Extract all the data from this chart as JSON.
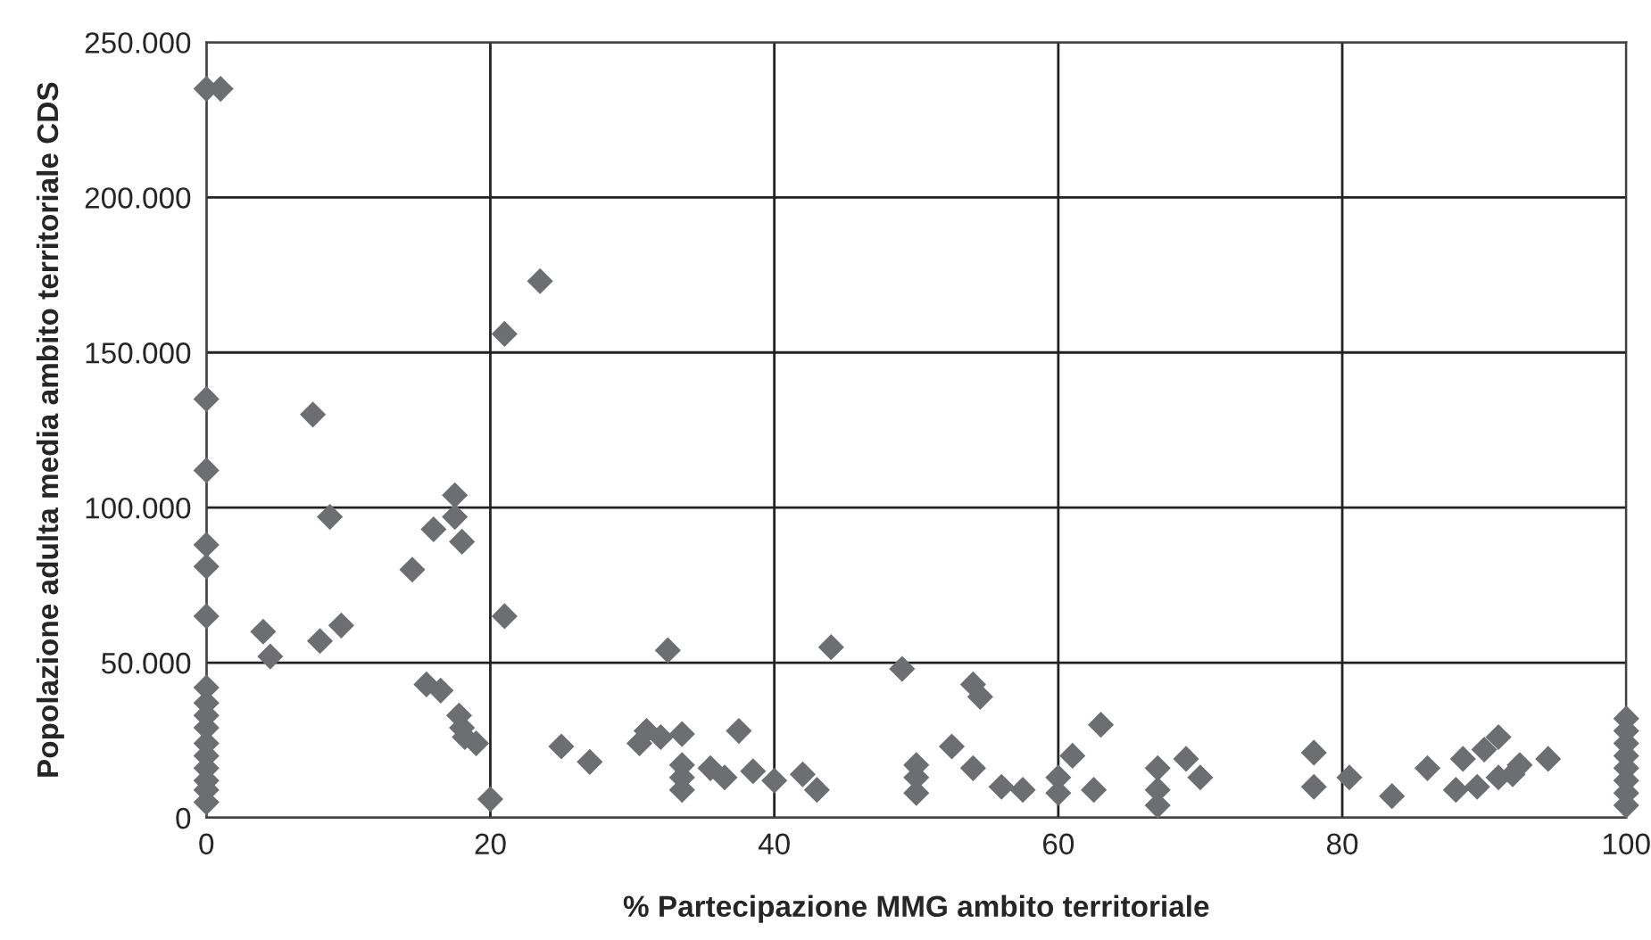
{
  "chart_data": {
    "type": "scatter",
    "xlabel": "% Partecipazione MMG ambito territoriale",
    "ylabel": "Popolazione adulta media ambito territoriale CDS",
    "xlim": [
      0,
      100
    ],
    "xticks": [
      0,
      20,
      40,
      60,
      80,
      100
    ],
    "ylim": [
      0,
      250000
    ],
    "yticks": [
      {
        "value": 0,
        "label": "0"
      },
      {
        "value": 50000,
        "label": "50.000"
      },
      {
        "value": 100000,
        "label": "100.000"
      },
      {
        "value": 150000,
        "label": "150.000"
      },
      {
        "value": 200000,
        "label": "200.000"
      },
      {
        "value": 250000,
        "label": "250.000"
      }
    ],
    "grid": true,
    "marker": "diamond",
    "series": [
      {
        "color": "#6d6e71",
        "x": [
          0,
          1,
          0,
          0,
          0,
          0,
          0,
          0,
          0,
          0,
          0,
          0,
          0,
          0,
          0,
          0,
          0,
          4,
          4.5,
          7.5,
          8,
          8.7,
          9.5,
          14.5,
          15.5,
          16,
          16.5,
          17.5,
          17.5,
          17.8,
          18,
          18,
          18.2,
          19,
          20,
          21,
          21,
          23.5,
          25,
          27,
          30.5,
          31,
          32,
          32.5,
          33.5,
          33.5,
          33.5,
          33.5,
          35.5,
          36.5,
          37.5,
          38.5,
          40,
          42,
          43,
          44,
          49,
          50,
          50,
          50,
          52.5,
          54,
          54.5,
          54,
          56,
          57.5,
          60,
          60,
          61,
          62.5,
          63,
          67,
          67,
          67,
          69,
          70,
          78,
          78,
          80.5,
          83.5,
          86,
          88,
          88.5,
          89.5,
          90,
          91,
          91,
          92,
          92.5,
          94.5,
          100,
          100,
          100,
          100,
          100,
          100,
          100,
          100
        ],
        "values": [
          235000,
          235000,
          135000,
          112000,
          88000,
          81000,
          65000,
          42000,
          37000,
          33000,
          29000,
          24000,
          20000,
          16000,
          12000,
          9000,
          5000,
          60000,
          52000,
          130000,
          57000,
          97000,
          62000,
          80000,
          43000,
          93000,
          41000,
          104000,
          97000,
          33000,
          89000,
          29000,
          26000,
          24000,
          6000,
          156000,
          65000,
          173000,
          23000,
          18000,
          24000,
          28000,
          26000,
          54000,
          27000,
          17000,
          13000,
          9000,
          16000,
          13000,
          28000,
          15000,
          12000,
          14000,
          9000,
          55000,
          48000,
          17000,
          13000,
          8000,
          23000,
          43000,
          39000,
          16000,
          10000,
          9000,
          13000,
          8000,
          20000,
          9000,
          30000,
          16000,
          9000,
          4000,
          19000,
          13000,
          21000,
          10000,
          13000,
          7000,
          16000,
          9000,
          19000,
          10000,
          22000,
          13000,
          26000,
          14000,
          17000,
          19000,
          32000,
          28000,
          24000,
          20000,
          16000,
          12000,
          8000,
          4000
        ]
      }
    ]
  }
}
